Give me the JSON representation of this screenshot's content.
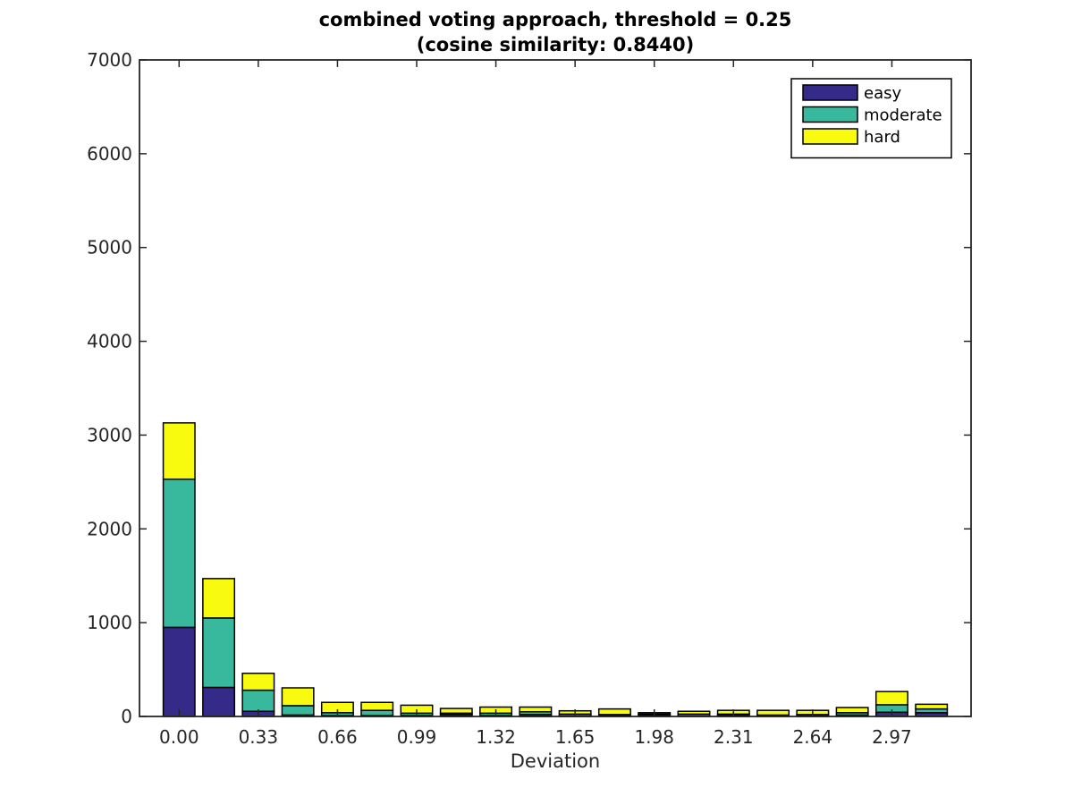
{
  "chart_data": {
    "type": "bar",
    "stacked": true,
    "title_lines": [
      "combined voting approach, threshold = 0.25",
      "(cosine similarity: 0.8440)"
    ],
    "xlabel": "Deviation",
    "ylabel": "",
    "ylim": [
      0,
      7000
    ],
    "yticks": [
      0,
      1000,
      2000,
      3000,
      4000,
      5000,
      6000,
      7000
    ],
    "xticks": [
      "0.00",
      "0.33",
      "0.66",
      "0.99",
      "1.32",
      "1.65",
      "1.98",
      "2.31",
      "2.64",
      "2.97"
    ],
    "x": [
      0.0,
      0.165,
      0.33,
      0.495,
      0.66,
      0.825,
      0.99,
      1.155,
      1.32,
      1.485,
      1.65,
      1.815,
      1.98,
      2.145,
      2.31,
      2.475,
      2.64,
      2.805,
      2.97,
      3.135
    ],
    "xlim": [
      -0.165,
      3.3
    ],
    "grid": false,
    "legend_position": "top-right",
    "series": [
      {
        "name": "easy",
        "color": "#352a87",
        "values": [
          950,
          310,
          55,
          15,
          10,
          10,
          10,
          20,
          10,
          20,
          5,
          10,
          15,
          5,
          15,
          5,
          5,
          15,
          45,
          40
        ]
      },
      {
        "name": "moderate",
        "color": "#38b99e",
        "values": [
          1580,
          740,
          225,
          100,
          30,
          55,
          25,
          15,
          25,
          30,
          20,
          10,
          10,
          20,
          10,
          10,
          15,
          25,
          80,
          40
        ]
      },
      {
        "name": "hard",
        "color": "#f9fb0e",
        "values": [
          600,
          420,
          180,
          190,
          110,
          85,
          85,
          50,
          65,
          50,
          35,
          60,
          15,
          30,
          40,
          50,
          45,
          55,
          140,
          50
        ]
      }
    ]
  }
}
